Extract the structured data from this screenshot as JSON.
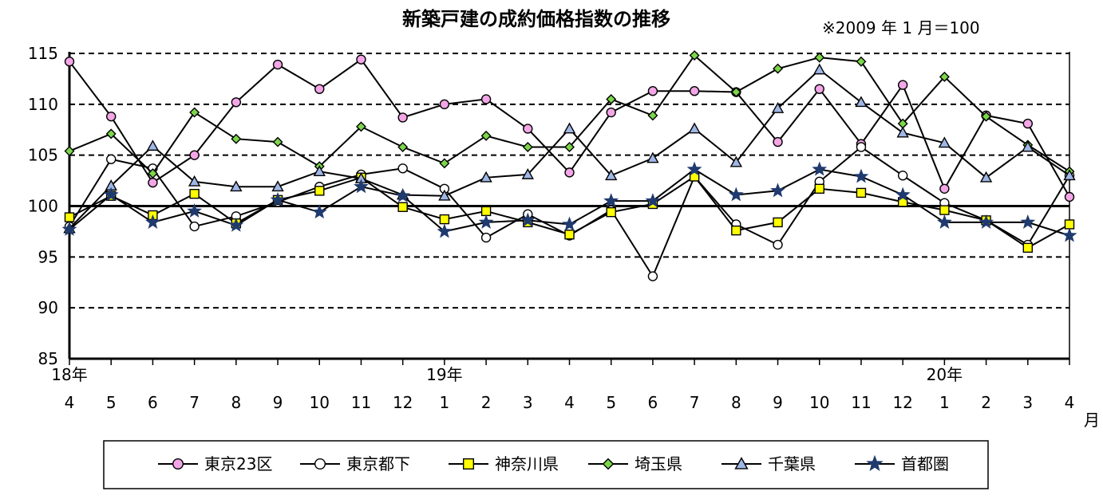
{
  "chart_data": {
    "type": "line",
    "title": "新築戸建の成約価格指数の推移",
    "note": "※2009 年 1 月＝100",
    "x_labels": [
      "4",
      "5",
      "6",
      "7",
      "8",
      "9",
      "10",
      "11",
      "12",
      "1",
      "2",
      "3",
      "4",
      "5",
      "6",
      "7",
      "8",
      "9",
      "10",
      "11",
      "12",
      "1",
      "2",
      "3",
      "4"
    ],
    "year_labels": [
      {
        "index": 0,
        "label": "18年"
      },
      {
        "index": 9,
        "label": "19年"
      },
      {
        "index": 21,
        "label": "20年"
      }
    ],
    "month_unit": "月",
    "ylim": [
      85,
      115
    ],
    "yticks": [
      85,
      90,
      95,
      100,
      105,
      110,
      115
    ],
    "dashed_gridlines": [
      90,
      95,
      105,
      110,
      115
    ],
    "reference_line": 100,
    "legend_position": "bottom",
    "series": [
      {
        "name": "東京23区",
        "marker": "circle",
        "color": "#f2a6e6",
        "values": [
          114.2,
          108.8,
          102.3,
          105.0,
          110.2,
          113.9,
          111.5,
          114.4,
          108.7,
          110.0,
          110.5,
          107.6,
          103.3,
          109.2,
          111.3,
          111.3,
          111.2,
          106.3,
          111.5,
          106.1,
          111.9,
          101.7,
          108.9,
          108.1,
          100.9
        ]
      },
      {
        "name": "東京都下",
        "marker": "hollow-circle",
        "color": "#ffffff",
        "values": [
          98.0,
          104.6,
          103.7,
          98.0,
          99.0,
          100.4,
          101.9,
          103.1,
          103.7,
          101.7,
          96.9,
          99.2,
          97.1,
          99.6,
          93.1,
          102.9,
          98.2,
          96.2,
          102.4,
          105.8,
          103.0,
          100.3,
          98.6,
          96.2,
          103.0
        ]
      },
      {
        "name": "神奈川県",
        "marker": "square",
        "color": "#ffff00",
        "values": [
          98.9,
          101.0,
          99.1,
          101.2,
          98.3,
          100.6,
          101.5,
          102.8,
          99.9,
          98.7,
          99.5,
          98.4,
          97.2,
          99.4,
          100.2,
          102.9,
          97.6,
          98.4,
          101.7,
          101.3,
          100.4,
          99.6,
          98.6,
          95.9,
          98.2
        ]
      },
      {
        "name": "埼玉県",
        "marker": "diamond",
        "color": "#7cd64a",
        "values": [
          105.4,
          107.1,
          103.2,
          109.2,
          106.6,
          106.3,
          103.9,
          107.8,
          105.8,
          104.2,
          106.9,
          105.8,
          105.8,
          110.5,
          108.9,
          114.8,
          111.2,
          113.5,
          114.6,
          114.2,
          108.1,
          112.7,
          108.8,
          106.0,
          103.4
        ]
      },
      {
        "name": "千葉県",
        "marker": "triangle",
        "color": "#9fb7e6",
        "values": [
          97.8,
          102.0,
          105.9,
          102.4,
          101.9,
          101.9,
          103.4,
          102.7,
          101.1,
          101.0,
          102.8,
          103.1,
          107.6,
          103.0,
          104.7,
          107.6,
          104.3,
          109.6,
          113.4,
          110.2,
          107.2,
          106.2,
          102.8,
          105.8,
          103.0
        ]
      },
      {
        "name": "首都圏",
        "marker": "star",
        "color": "#1f3a6e",
        "values": [
          97.7,
          101.1,
          98.4,
          99.5,
          98.1,
          100.6,
          99.4,
          101.9,
          101.0,
          97.5,
          98.4,
          98.6,
          98.2,
          100.5,
          100.5,
          103.6,
          101.1,
          101.5,
          103.6,
          102.9,
          101.1,
          98.4,
          98.4,
          98.4,
          97.1
        ]
      }
    ]
  }
}
